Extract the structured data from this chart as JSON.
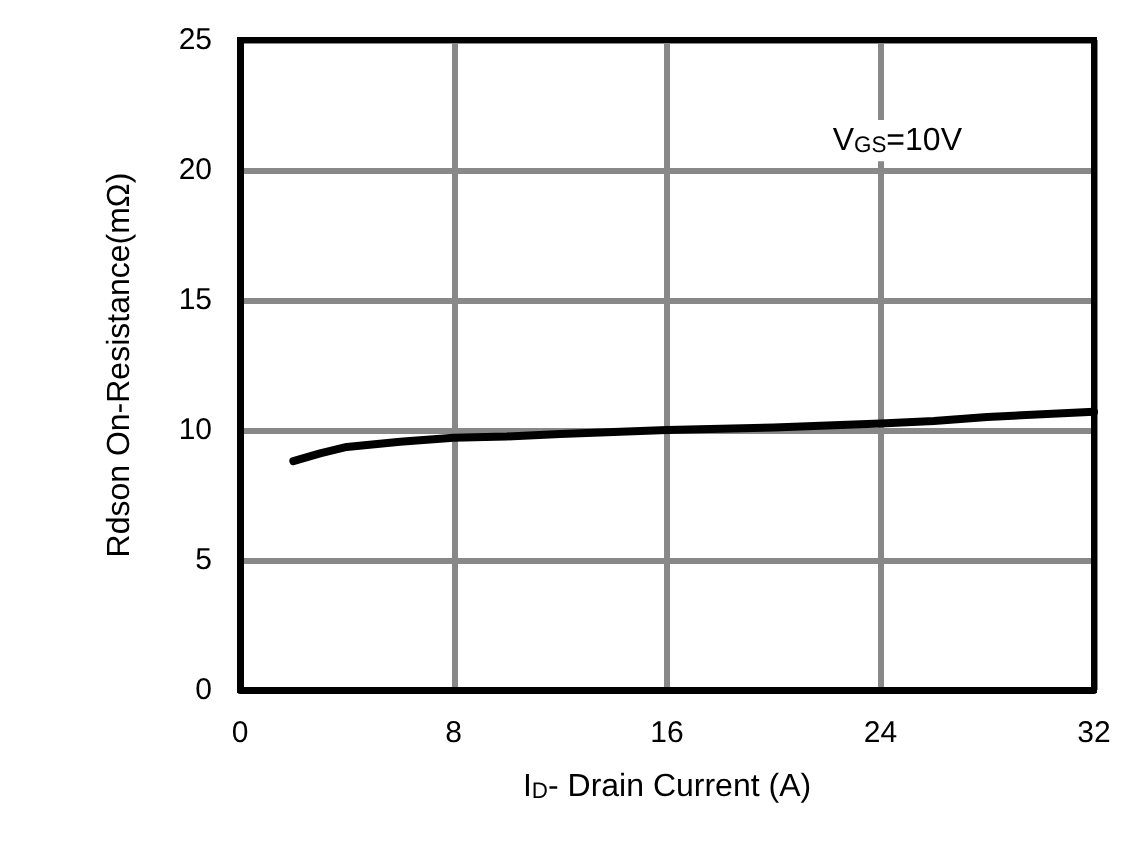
{
  "chart_data": {
    "type": "line",
    "xlabel": "I$_{D}$- Drain Current (A)",
    "ylabel": "Rdson On-Resistance(mΩ)",
    "annotations": [
      "V$_{GS}$=10V"
    ],
    "x": [
      2,
      3,
      4,
      6,
      8,
      10,
      12,
      16,
      20,
      24,
      26,
      28,
      32
    ],
    "series": [
      {
        "color": "#000000",
        "values": [
          8.8,
          9.1,
          9.35,
          9.55,
          9.7,
          9.75,
          9.85,
          10.0,
          10.1,
          10.25,
          10.35,
          10.5,
          10.7
        ]
      }
    ],
    "xlim": [
      0,
      32
    ],
    "xticks": [
      0,
      8,
      16,
      24,
      32
    ],
    "ylim": [
      0,
      25
    ],
    "yticks": [
      0,
      5,
      10,
      15,
      20,
      25
    ],
    "grid": true,
    "marker": "none",
    "line_style": "solid"
  }
}
